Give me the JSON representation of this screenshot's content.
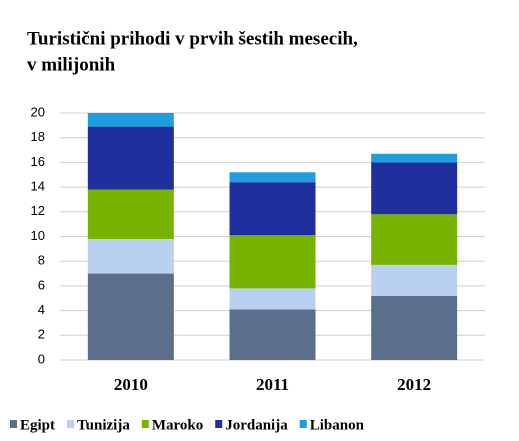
{
  "chart_data": {
    "type": "stacked_bar",
    "title": "Turistični prihodi v prvih šestih mesecih,",
    "subtitle": "v milijonih",
    "categories": [
      "2010",
      "2011",
      "2012"
    ],
    "series": [
      {
        "name": "Egipt",
        "color": "#5b6f8c",
        "values": [
          7.0,
          4.1,
          5.2
        ]
      },
      {
        "name": "Tunizija",
        "color": "#b9d0f0",
        "values": [
          2.8,
          1.7,
          2.5
        ]
      },
      {
        "name": "Maroko",
        "color": "#77b300",
        "values": [
          4.0,
          4.3,
          4.1
        ]
      },
      {
        "name": "Jordanija",
        "color": "#1f2f9e",
        "values": [
          5.1,
          4.3,
          4.2
        ]
      },
      {
        "name": "Libanon",
        "color": "#1e9ede",
        "values": [
          1.1,
          0.8,
          0.7
        ]
      }
    ],
    "ylim": [
      0,
      20
    ],
    "yticks": [
      0,
      2,
      4,
      6,
      8,
      10,
      12,
      14,
      16,
      18,
      20
    ],
    "grid": true
  }
}
